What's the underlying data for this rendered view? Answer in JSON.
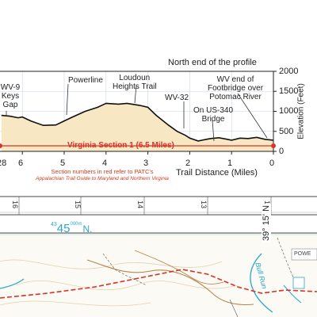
{
  "profile": {
    "header": "North end of the profile",
    "labels": {
      "wv9": "WV-9\nKeys\nGap",
      "powerline": "Powerline",
      "loudoun": "Loudoun\nHeights Trail",
      "wv32": "WV-32",
      "us340": "On US-340\nBridge",
      "footbridge": "WV end of\nFootbridge over\nPotomac River"
    },
    "section_label": "Virginia Section 1 (6.5 Miles)",
    "note_line1": "Section numbers in red refer to PATC's",
    "note_line2": "Appalachian Trail Guide to Maryland and Northern Virginia",
    "x_axis_title": "Trail Distance (Miles)",
    "x_ticks": [
      "28",
      "6",
      "5",
      "4",
      "3",
      "2",
      "1",
      "0"
    ],
    "y_axis_title": "Elevation (Feet)",
    "y_ticks": [
      "2000",
      "1500",
      "1000",
      "500",
      "0"
    ]
  },
  "map": {
    "grid_numbers": [
      "16",
      "15",
      "14",
      "13",
      "12"
    ],
    "utm_prefix": "43",
    "utm_main": "45",
    "utm_sup": "000m",
    "utm_suffix": "N.",
    "latitude": "39° 15' N",
    "stream": "Bull Run",
    "corner_label": "POWE"
  },
  "colors": {
    "profile_fill": "#f8e7c3",
    "trail_red": "#d8322a",
    "cyan": "#2aa8c8"
  },
  "chart_data": {
    "type": "area",
    "xlabel": "Trail Distance (Miles)",
    "ylabel": "Elevation (Feet)",
    "xlim": [
      0,
      6.5
    ],
    "ylim": [
      0,
      2000
    ],
    "x_reversed": true,
    "grid": true,
    "x": [
      6.5,
      6.3,
      6.1,
      6.0,
      5.8,
      5.5,
      5.2,
      5.0,
      4.8,
      4.5,
      4.2,
      4.0,
      3.7,
      3.5,
      3.2,
      3.0,
      2.8,
      2.5,
      2.3,
      2.1,
      2.0,
      1.8,
      1.6,
      1.5,
      1.3,
      1.1,
      1.0,
      0.8,
      0.6,
      0.4,
      0.2,
      0.0
    ],
    "values": [
      900,
      880,
      840,
      860,
      760,
      650,
      660,
      760,
      860,
      1000,
      1100,
      1200,
      1180,
      1200,
      1150,
      1100,
      900,
      650,
      500,
      400,
      330,
      260,
      300,
      320,
      340,
      300,
      280,
      330,
      320,
      350,
      300,
      280
    ]
  }
}
